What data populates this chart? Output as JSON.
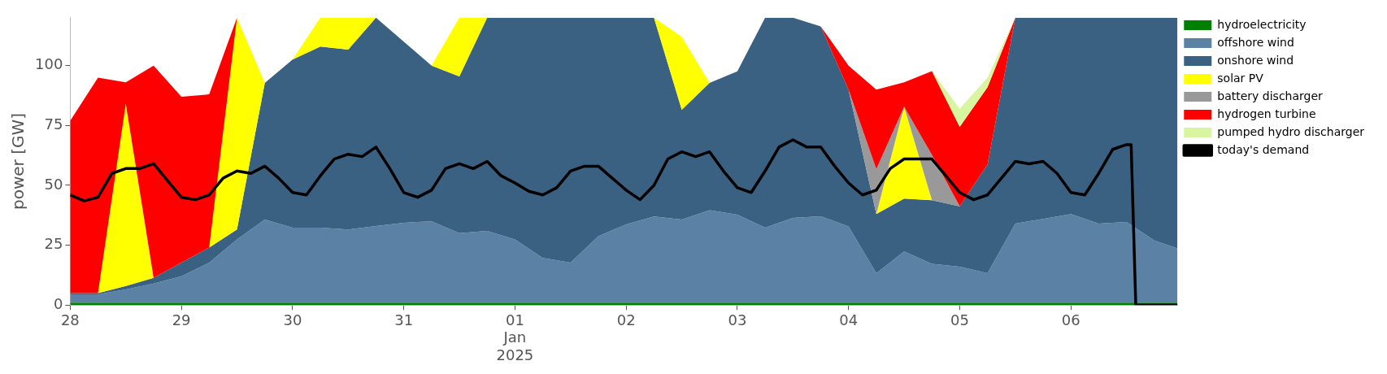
{
  "chart_data": {
    "type": "area",
    "stacked": true,
    "ylabel": "power [GW]",
    "legend": "right",
    "grid": false,
    "marker": "none",
    "xlim": [
      "2024-12-28T00:00",
      "2025-01-06T23:00"
    ],
    "ylim": [
      0,
      120
    ],
    "yticks": [
      0,
      25,
      50,
      75,
      100
    ],
    "xticks": [
      {
        "value": "2024-12-28",
        "label": "28"
      },
      {
        "value": "2024-12-29",
        "label": "29"
      },
      {
        "value": "2024-12-30",
        "label": "30"
      },
      {
        "value": "2024-12-31",
        "label": "31"
      },
      {
        "value": "2025-01-01",
        "label": "01\nJan\n2025"
      },
      {
        "value": "2025-01-02",
        "label": "02"
      },
      {
        "value": "2025-01-03",
        "label": "03"
      },
      {
        "value": "2025-01-04",
        "label": "04"
      },
      {
        "value": "2025-01-05",
        "label": "05"
      },
      {
        "value": "2025-01-06",
        "label": "06"
      }
    ],
    "x": [
      "2024-12-28T00:00",
      "2024-12-28T06:00",
      "2024-12-28T12:00",
      "2024-12-28T18:00",
      "2024-12-29T00:00",
      "2024-12-29T06:00",
      "2024-12-29T12:00",
      "2024-12-29T18:00",
      "2024-12-30T00:00",
      "2024-12-30T06:00",
      "2024-12-30T12:00",
      "2024-12-30T18:00",
      "2024-12-31T00:00",
      "2024-12-31T06:00",
      "2024-12-31T12:00",
      "2024-12-31T18:00",
      "2025-01-01T00:00",
      "2025-01-01T06:00",
      "2025-01-01T12:00",
      "2025-01-01T18:00",
      "2025-01-02T00:00",
      "2025-01-02T06:00",
      "2025-01-02T12:00",
      "2025-01-02T18:00",
      "2025-01-03T00:00",
      "2025-01-03T06:00",
      "2025-01-03T12:00",
      "2025-01-03T18:00",
      "2025-01-04T00:00",
      "2025-01-04T06:00",
      "2025-01-04T12:00",
      "2025-01-04T18:00",
      "2025-01-05T00:00",
      "2025-01-05T06:00",
      "2025-01-05T12:00",
      "2025-01-05T18:00",
      "2025-01-06T00:00",
      "2025-01-06T06:00",
      "2025-01-06T12:00",
      "2025-01-06T18:00",
      "2025-01-06T23:00"
    ],
    "series": [
      {
        "name": "hydroelectricity",
        "color": "#008000",
        "values": [
          1,
          1,
          1,
          1,
          1,
          1,
          1,
          1,
          1,
          1,
          1,
          1,
          1,
          1,
          1,
          1,
          1,
          1,
          1,
          1,
          1,
          1,
          1,
          1,
          1,
          1,
          1,
          1,
          1,
          1,
          1,
          1,
          1,
          1,
          1,
          1,
          1,
          1,
          1,
          1,
          1
        ]
      },
      {
        "name": "offshore wind",
        "color": "#5b82a5",
        "values": [
          3.5,
          3.5,
          5.5,
          8,
          11,
          16.7,
          26.4,
          34.7,
          31.3,
          31.3,
          30.6,
          32,
          33.4,
          34,
          29,
          30,
          26.4,
          18.7,
          16.7,
          27.8,
          32.7,
          36,
          34.7,
          38.6,
          36.8,
          31.3,
          35.4,
          36.1,
          31.8,
          12.3,
          21.4,
          16.2,
          15,
          12.3,
          33,
          35,
          37,
          33,
          33.7,
          26,
          22.7
        ]
      },
      {
        "name": "onshore wind",
        "color": "#3b6182",
        "values": [
          0.5,
          0.5,
          1.5,
          2.4,
          5.7,
          6.3,
          4.2,
          57.1,
          70.2,
          75.7,
          75.1,
          87,
          75.6,
          65,
          65.5,
          89,
          92.6,
          100.3,
          102.3,
          91.2,
          86.3,
          83,
          45.9,
          53.2,
          59.8,
          87.7,
          83.6,
          79.3,
          57.2,
          24.7,
          22.1,
          26.6,
          25.2,
          45.4,
          86,
          84,
          82,
          86,
          85.3,
          93,
          96.3
        ]
      },
      {
        "name": "solar PV",
        "color": "#ffff00",
        "values": [
          null,
          0,
          76,
          0,
          null,
          0,
          88.4,
          0,
          0,
          12,
          13.3,
          0,
          null,
          0,
          24.5,
          0,
          null,
          null,
          null,
          null,
          null,
          0,
          30.4,
          0,
          null,
          null,
          null,
          null,
          null,
          0,
          38.3,
          0,
          null,
          null,
          null,
          null,
          null,
          null,
          null,
          null,
          null
        ]
      },
      {
        "name": "battery discharger",
        "color": "#999999",
        "values": [
          null,
          null,
          null,
          null,
          null,
          null,
          null,
          null,
          null,
          null,
          null,
          null,
          null,
          null,
          null,
          null,
          null,
          null,
          null,
          null,
          null,
          null,
          null,
          null,
          null,
          null,
          null,
          null,
          0,
          18.8,
          0,
          18.9,
          0,
          null,
          null,
          null,
          null,
          null,
          null,
          null,
          null
        ]
      },
      {
        "name": "hydrogen turbine",
        "color": "#ff0000",
        "values": [
          72,
          90,
          9,
          88.6,
          69.3,
          64,
          0,
          null,
          null,
          null,
          null,
          null,
          null,
          null,
          null,
          null,
          null,
          null,
          null,
          null,
          null,
          null,
          null,
          null,
          null,
          null,
          null,
          0,
          10,
          33.2,
          10.2,
          35,
          33.2,
          32.3,
          0,
          null,
          null,
          null,
          null,
          null,
          null
        ]
      },
      {
        "name": "pumped hydro discharger",
        "color": "#d8f6a0",
        "values": [
          null,
          null,
          null,
          null,
          null,
          null,
          null,
          null,
          null,
          null,
          null,
          null,
          null,
          null,
          null,
          null,
          null,
          null,
          null,
          null,
          null,
          null,
          null,
          null,
          null,
          null,
          null,
          null,
          null,
          null,
          null,
          0,
          7.6,
          4,
          0,
          null,
          null,
          null,
          null,
          null,
          null
        ]
      },
      {
        "name": "today's demand",
        "type": "line",
        "color": "#000000",
        "line_style": "solid",
        "x": [
          "2024-12-28T00:00",
          "2024-12-28T03:00",
          "2024-12-28T06:00",
          "2024-12-28T09:00",
          "2024-12-28T12:00",
          "2024-12-28T15:00",
          "2024-12-28T18:00",
          "2024-12-28T21:00",
          "2024-12-29T00:00",
          "2024-12-29T03:00",
          "2024-12-29T06:00",
          "2024-12-29T09:00",
          "2024-12-29T12:00",
          "2024-12-29T15:00",
          "2024-12-29T18:00",
          "2024-12-29T21:00",
          "2024-12-30T00:00",
          "2024-12-30T03:00",
          "2024-12-30T06:00",
          "2024-12-30T09:00",
          "2024-12-30T12:00",
          "2024-12-30T15:00",
          "2024-12-30T18:00",
          "2024-12-30T21:00",
          "2024-12-31T00:00",
          "2024-12-31T03:00",
          "2024-12-31T06:00",
          "2024-12-31T09:00",
          "2024-12-31T12:00",
          "2024-12-31T15:00",
          "2024-12-31T18:00",
          "2024-12-31T21:00",
          "2025-01-01T00:00",
          "2025-01-01T03:00",
          "2025-01-01T06:00",
          "2025-01-01T09:00",
          "2025-01-01T12:00",
          "2025-01-01T15:00",
          "2025-01-01T18:00",
          "2025-01-01T21:00",
          "2025-01-02T00:00",
          "2025-01-02T03:00",
          "2025-01-02T06:00",
          "2025-01-02T09:00",
          "2025-01-02T12:00",
          "2025-01-02T15:00",
          "2025-01-02T18:00",
          "2025-01-02T21:00",
          "2025-01-03T00:00",
          "2025-01-03T03:00",
          "2025-01-03T06:00",
          "2025-01-03T09:00",
          "2025-01-03T12:00",
          "2025-01-03T15:00",
          "2025-01-03T18:00",
          "2025-01-03T21:00",
          "2025-01-04T00:00",
          "2025-01-04T03:00",
          "2025-01-04T06:00",
          "2025-01-04T09:00",
          "2025-01-04T12:00",
          "2025-01-04T15:00",
          "2025-01-04T18:00",
          "2025-01-04T21:00",
          "2025-01-05T00:00",
          "2025-01-05T03:00",
          "2025-01-05T06:00",
          "2025-01-05T09:00",
          "2025-01-05T12:00",
          "2025-01-05T15:00",
          "2025-01-05T18:00",
          "2025-01-05T21:00",
          "2025-01-06T00:00",
          "2025-01-06T03:00",
          "2025-01-06T06:00",
          "2025-01-06T09:00",
          "2025-01-06T12:00",
          "2025-01-06T13:00",
          "2025-01-06T14:00",
          "2025-01-06T23:00"
        ],
        "values": [
          46,
          43.5,
          45,
          55,
          57,
          57,
          59,
          52,
          45,
          44,
          46,
          53,
          56,
          55,
          58,
          53,
          47,
          46,
          54,
          61,
          63,
          62,
          66,
          57,
          47,
          45,
          48,
          57,
          59,
          57,
          60,
          54,
          51,
          47.5,
          46,
          49,
          56,
          58,
          58,
          53,
          48,
          44,
          50,
          61,
          64,
          62,
          64,
          56,
          49,
          47,
          56,
          66,
          69,
          66,
          66,
          58,
          51,
          46,
          48,
          57,
          61,
          61,
          61,
          54,
          47,
          44,
          46,
          53,
          60,
          59,
          60,
          55,
          47,
          46,
          55,
          65,
          67,
          67,
          0,
          0
        ]
      }
    ]
  }
}
